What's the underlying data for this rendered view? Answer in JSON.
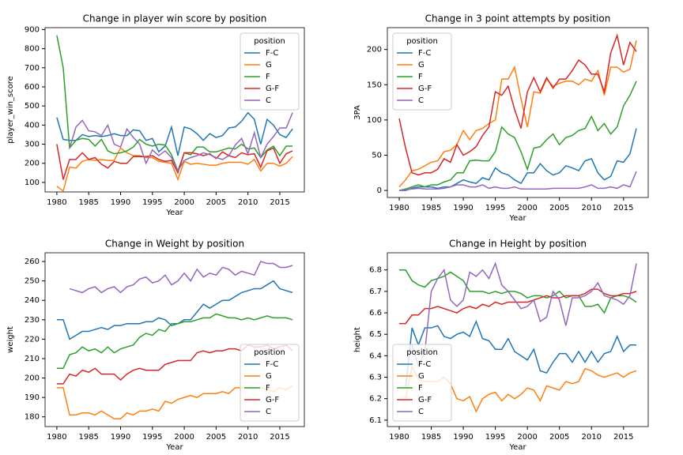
{
  "chart_data": [
    {
      "type": "line",
      "title": "Change in player win score by position",
      "x_label": "Year",
      "y_label": "player_win_score",
      "x": [
        1980,
        1981,
        1982,
        1983,
        1984,
        1985,
        1986,
        1987,
        1988,
        1989,
        1990,
        1991,
        1992,
        1993,
        1994,
        1995,
        1996,
        1997,
        1998,
        1999,
        2000,
        2001,
        2002,
        2003,
        2004,
        2005,
        2006,
        2007,
        2008,
        2009,
        2010,
        2011,
        2012,
        2013,
        2014,
        2015,
        2016,
        2017
      ],
      "xlim": [
        1978.15,
        2018.85
      ],
      "xticks": [
        1980,
        1985,
        1990,
        1995,
        2000,
        2005,
        2010,
        2015
      ],
      "ylim": [
        50,
        910
      ],
      "yticks": [
        100,
        200,
        300,
        400,
        500,
        600,
        700,
        800,
        900
      ],
      "legend": "upper right",
      "legend_title": "position",
      "series": [
        {
          "name": "F-C",
          "color": "#1f77b4",
          "values": [
            440,
            325,
            320,
            320,
            350,
            340,
            345,
            340,
            345,
            355,
            345,
            345,
            375,
            370,
            320,
            330,
            260,
            290,
            390,
            240,
            390,
            380,
            355,
            320,
            355,
            335,
            345,
            385,
            390,
            420,
            465,
            430,
            300,
            430,
            400,
            350,
            335,
            380
          ]
        },
        {
          "name": "G",
          "color": "#ff7f0e",
          "values": [
            80,
            55,
            180,
            175,
            210,
            220,
            215,
            220,
            215,
            215,
            280,
            255,
            240,
            240,
            230,
            230,
            210,
            205,
            200,
            115,
            210,
            195,
            200,
            195,
            190,
            190,
            200,
            205,
            205,
            205,
            195,
            220,
            160,
            200,
            200,
            185,
            200,
            235
          ]
        },
        {
          "name": "F",
          "color": "#2ca02c",
          "values": [
            870,
            700,
            280,
            320,
            330,
            325,
            290,
            325,
            265,
            250,
            255,
            265,
            285,
            325,
            300,
            290,
            300,
            295,
            245,
            160,
            255,
            245,
            285,
            285,
            260,
            260,
            270,
            280,
            275,
            300,
            275,
            280,
            230,
            270,
            290,
            240,
            290,
            290
          ]
        },
        {
          "name": "G-F",
          "color": "#d62728",
          "values": [
            300,
            115,
            220,
            220,
            255,
            220,
            230,
            195,
            175,
            210,
            200,
            200,
            235,
            235,
            235,
            240,
            220,
            210,
            215,
            150,
            255,
            255,
            250,
            240,
            250,
            225,
            260,
            240,
            230,
            255,
            245,
            250,
            180,
            265,
            280,
            200,
            250,
            265
          ]
        },
        {
          "name": "C",
          "color": "#9467bd",
          "values": [
            null,
            null,
            280,
            390,
            425,
            370,
            365,
            345,
            400,
            300,
            285,
            380,
            335,
            300,
            200,
            270,
            240,
            265,
            230,
            160,
            215,
            230,
            240,
            255,
            245,
            230,
            220,
            240,
            295,
            330,
            250,
            360,
            230,
            300,
            340,
            385,
            385,
            465
          ]
        }
      ]
    },
    {
      "type": "line",
      "title": "Change in 3 point attempts by position",
      "x_label": "Year",
      "y_label": "3PA",
      "x": [
        1980,
        1981,
        1982,
        1983,
        1984,
        1985,
        1986,
        1987,
        1988,
        1989,
        1990,
        1991,
        1992,
        1993,
        1994,
        1995,
        1996,
        1997,
        1998,
        1999,
        2000,
        2001,
        2002,
        2003,
        2004,
        2005,
        2006,
        2007,
        2008,
        2009,
        2010,
        2011,
        2012,
        2013,
        2014,
        2015,
        2016,
        2017
      ],
      "xlim": [
        1978.15,
        2018.85
      ],
      "xticks": [
        1980,
        1985,
        1990,
        1995,
        2000,
        2005,
        2010,
        2015
      ],
      "ylim": [
        -10,
        231
      ],
      "yticks": [
        0,
        50,
        100,
        150,
        200
      ],
      "legend": "upper left",
      "legend_title": "position",
      "series": [
        {
          "name": "F-C",
          "color": "#1f77b4",
          "values": [
            0,
            0,
            3,
            5,
            5,
            5,
            3,
            5,
            5,
            10,
            15,
            12,
            10,
            18,
            15,
            32,
            25,
            22,
            15,
            10,
            25,
            25,
            38,
            28,
            22,
            25,
            35,
            32,
            28,
            42,
            45,
            25,
            15,
            20,
            42,
            40,
            52,
            88
          ]
        },
        {
          "name": "G",
          "color": "#ff7f0e",
          "values": [
            5,
            15,
            28,
            30,
            35,
            40,
            42,
            55,
            57,
            65,
            85,
            72,
            85,
            88,
            95,
            100,
            158,
            158,
            175,
            130,
            90,
            140,
            138,
            158,
            148,
            152,
            155,
            155,
            150,
            158,
            155,
            170,
            135,
            175,
            175,
            168,
            172,
            213
          ]
        },
        {
          "name": "F",
          "color": "#2ca02c",
          "values": [
            0,
            2,
            5,
            8,
            5,
            8,
            8,
            12,
            15,
            25,
            25,
            42,
            43,
            42,
            42,
            55,
            90,
            80,
            75,
            55,
            30,
            60,
            62,
            72,
            80,
            65,
            75,
            78,
            85,
            88,
            105,
            85,
            95,
            80,
            90,
            120,
            135,
            155
          ]
        },
        {
          "name": "G-F",
          "color": "#d62728",
          "values": [
            102,
            60,
            25,
            22,
            25,
            25,
            30,
            45,
            40,
            65,
            50,
            55,
            62,
            78,
            90,
            140,
            135,
            148,
            115,
            88,
            140,
            160,
            140,
            160,
            145,
            158,
            158,
            170,
            185,
            178,
            165,
            165,
            140,
            195,
            220,
            178,
            210,
            197
          ]
        },
        {
          "name": "C",
          "color": "#9467bd",
          "values": [
            0,
            1,
            2,
            3,
            2,
            2,
            2,
            3,
            5,
            8,
            8,
            5,
            5,
            8,
            3,
            5,
            3,
            3,
            5,
            2,
            2,
            2,
            2,
            2,
            3,
            3,
            3,
            3,
            3,
            5,
            8,
            3,
            3,
            5,
            3,
            8,
            5,
            27
          ]
        }
      ]
    },
    {
      "type": "line",
      "title": "Change in Weight by position",
      "x_label": "Year",
      "y_label": "weight",
      "x": [
        1980,
        1981,
        1982,
        1983,
        1984,
        1985,
        1986,
        1987,
        1988,
        1989,
        1990,
        1991,
        1992,
        1993,
        1994,
        1995,
        1996,
        1997,
        1998,
        1999,
        2000,
        2001,
        2002,
        2003,
        2004,
        2005,
        2006,
        2007,
        2008,
        2009,
        2010,
        2011,
        2012,
        2013,
        2014,
        2015,
        2016,
        2017
      ],
      "xlim": [
        1978.15,
        2018.85
      ],
      "xticks": [
        1980,
        1985,
        1990,
        1995,
        2000,
        2005,
        2010,
        2015
      ],
      "ylim": [
        175,
        264.5
      ],
      "yticks": [
        180,
        190,
        200,
        210,
        220,
        230,
        240,
        250,
        260
      ],
      "legend": "lower right",
      "legend_title": "position",
      "series": [
        {
          "name": "F-C",
          "color": "#1f77b4",
          "values": [
            230,
            230,
            220,
            222,
            224,
            224,
            225,
            226,
            225,
            227,
            227,
            228,
            228,
            228,
            229,
            229,
            231,
            230,
            227,
            228,
            230,
            230,
            234,
            238,
            236,
            238,
            240,
            240,
            242,
            244,
            245,
            246,
            246,
            248,
            250,
            246,
            245,
            244
          ]
        },
        {
          "name": "G",
          "color": "#ff7f0e",
          "values": [
            195,
            195,
            181,
            181,
            182,
            182,
            181,
            183,
            181,
            179,
            179,
            182,
            181,
            183,
            183,
            184,
            183,
            188,
            187,
            189,
            190,
            191,
            190,
            192,
            192,
            192,
            193,
            192,
            195,
            195,
            195,
            195,
            195,
            194,
            193,
            195,
            194,
            196
          ]
        },
        {
          "name": "F",
          "color": "#2ca02c",
          "values": [
            205,
            205,
            212,
            213,
            216,
            214,
            215,
            213,
            216,
            213,
            215,
            216,
            217,
            221,
            223,
            222,
            225,
            224,
            228,
            228,
            229,
            229,
            230,
            231,
            231,
            233,
            232,
            231,
            231,
            230,
            231,
            230,
            231,
            232,
            231,
            231,
            231,
            230
          ]
        },
        {
          "name": "G-F",
          "color": "#d62728",
          "values": [
            197,
            197,
            202,
            201,
            204,
            203,
            205,
            202,
            202,
            202,
            199,
            202,
            204,
            205,
            204,
            204,
            204,
            207,
            208,
            209,
            209,
            209,
            213,
            214,
            213,
            214,
            214,
            215,
            215,
            214,
            217,
            216,
            216,
            217,
            215,
            216,
            217,
            214
          ]
        },
        {
          "name": "C",
          "color": "#9467bd",
          "values": [
            null,
            null,
            246,
            245,
            244,
            246,
            247,
            244,
            246,
            247,
            244,
            247,
            248,
            251,
            252,
            249,
            250,
            253,
            248,
            250,
            254,
            250,
            256,
            252,
            254,
            253,
            257,
            256,
            253,
            255,
            254,
            253,
            260,
            259,
            259,
            257,
            257,
            258
          ]
        }
      ]
    },
    {
      "type": "line",
      "title": "Change in Height by position",
      "x_label": "Year",
      "y_label": "height",
      "x": [
        1980,
        1981,
        1982,
        1983,
        1984,
        1985,
        1986,
        1987,
        1988,
        1989,
        1990,
        1991,
        1992,
        1993,
        1994,
        1995,
        1996,
        1997,
        1998,
        1999,
        2000,
        2001,
        2002,
        2003,
        2004,
        2005,
        2006,
        2007,
        2008,
        2009,
        2010,
        2011,
        2012,
        2013,
        2014,
        2015,
        2016,
        2017
      ],
      "xlim": [
        1978.15,
        2018.85
      ],
      "xticks": [
        1980,
        1985,
        1990,
        1995,
        2000,
        2005,
        2010,
        2015
      ],
      "ylim": [
        6.07,
        6.88
      ],
      "yticks": [
        6.1,
        6.2,
        6.3,
        6.4,
        6.5,
        6.6,
        6.7,
        6.8
      ],
      "legend": "lower left",
      "legend_title": "position",
      "series": [
        {
          "name": "F-C",
          "color": "#1f77b4",
          "values": [
            null,
            6.25,
            6.53,
            6.45,
            6.53,
            6.53,
            6.54,
            6.49,
            6.48,
            6.5,
            6.51,
            6.49,
            6.56,
            6.48,
            6.47,
            6.43,
            6.43,
            6.48,
            6.42,
            6.4,
            6.38,
            6.43,
            6.33,
            6.32,
            6.37,
            6.41,
            6.41,
            6.37,
            6.42,
            6.37,
            6.42,
            6.37,
            6.41,
            6.42,
            6.49,
            6.42,
            6.45,
            6.45
          ]
        },
        {
          "name": "G",
          "color": "#ff7f0e",
          "values": [
            null,
            6.2,
            6.35,
            6.29,
            6.28,
            6.28,
            6.28,
            6.3,
            6.27,
            6.2,
            6.19,
            6.21,
            6.14,
            6.2,
            6.22,
            6.23,
            6.19,
            6.22,
            6.2,
            6.22,
            6.25,
            6.24,
            6.19,
            6.26,
            6.25,
            6.24,
            6.28,
            6.27,
            6.28,
            6.34,
            6.33,
            6.31,
            6.3,
            6.31,
            6.32,
            6.3,
            6.32,
            6.33
          ]
        },
        {
          "name": "F",
          "color": "#2ca02c",
          "values": [
            6.8,
            6.8,
            6.75,
            6.73,
            6.72,
            6.75,
            6.76,
            6.77,
            6.79,
            6.77,
            6.75,
            6.7,
            6.7,
            6.7,
            6.69,
            6.7,
            6.69,
            6.7,
            6.7,
            6.69,
            6.67,
            6.68,
            6.68,
            6.67,
            6.68,
            6.7,
            6.67,
            6.68,
            6.68,
            6.63,
            6.63,
            6.64,
            6.6,
            6.67,
            6.68,
            6.68,
            6.67,
            6.65
          ]
        },
        {
          "name": "G-F",
          "color": "#d62728",
          "values": [
            6.55,
            6.55,
            6.59,
            6.59,
            6.62,
            6.62,
            6.63,
            6.62,
            6.61,
            6.6,
            6.62,
            6.63,
            6.62,
            6.64,
            6.63,
            6.65,
            6.64,
            6.65,
            6.65,
            6.65,
            6.65,
            6.66,
            6.67,
            6.68,
            6.67,
            6.67,
            6.68,
            6.68,
            6.68,
            6.69,
            6.71,
            6.71,
            6.69,
            6.68,
            6.68,
            6.69,
            6.69,
            6.7
          ]
        },
        {
          "name": "C",
          "color": "#9467bd",
          "values": [
            null,
            null,
            6.45,
            6.35,
            6.42,
            6.7,
            6.76,
            6.8,
            6.66,
            6.63,
            6.66,
            6.79,
            6.77,
            6.8,
            6.76,
            6.83,
            6.73,
            6.7,
            6.66,
            6.62,
            6.63,
            6.66,
            6.56,
            6.58,
            6.7,
            6.66,
            6.54,
            6.67,
            6.67,
            6.68,
            6.7,
            6.74,
            6.68,
            6.67,
            6.66,
            6.64,
            6.68,
            6.83
          ]
        }
      ]
    }
  ]
}
